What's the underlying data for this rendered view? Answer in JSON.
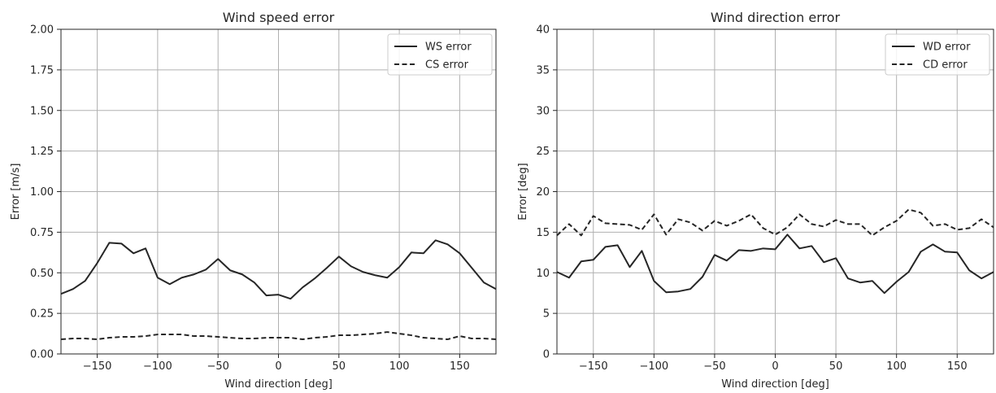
{
  "chart_data": [
    {
      "type": "line",
      "title": "Wind speed error",
      "xlabel": "Wind direction [deg]",
      "ylabel": "Error [m/s]",
      "xlim": [
        -180,
        180
      ],
      "ylim": [
        0,
        2.0
      ],
      "xticks": [
        -150,
        -100,
        -50,
        0,
        50,
        100,
        150
      ],
      "xtick_labels": [
        "−150",
        "−100",
        "−50",
        "0",
        "50",
        "100",
        "150"
      ],
      "yticks": [
        0,
        0.25,
        0.5,
        0.75,
        1.0,
        1.25,
        1.5,
        1.75,
        2.0
      ],
      "ytick_labels": [
        "0.00",
        "0.25",
        "0.50",
        "0.75",
        "1.00",
        "1.25",
        "1.50",
        "1.75",
        "2.00"
      ],
      "grid": true,
      "legend": "top-right",
      "x": [
        -180,
        -170,
        -160,
        -150,
        -140,
        -130,
        -120,
        -110,
        -100,
        -90,
        -80,
        -70,
        -60,
        -50,
        -40,
        -30,
        -20,
        -10,
        0,
        10,
        20,
        30,
        40,
        50,
        60,
        70,
        80,
        90,
        100,
        110,
        120,
        130,
        140,
        150,
        160,
        170,
        180
      ],
      "series": [
        {
          "name": "WS error",
          "style": "solid",
          "values": [
            0.37,
            0.4,
            0.45,
            0.56,
            0.685,
            0.68,
            0.62,
            0.65,
            0.47,
            0.43,
            0.47,
            0.49,
            0.52,
            0.585,
            0.515,
            0.49,
            0.44,
            0.36,
            0.365,
            0.34,
            0.41,
            0.465,
            0.53,
            0.6,
            0.54,
            0.505,
            0.485,
            0.47,
            0.535,
            0.625,
            0.62,
            0.7,
            0.675,
            0.62,
            0.53,
            0.44,
            0.4
          ]
        },
        {
          "name": "CS error",
          "style": "dashed",
          "values": [
            0.09,
            0.095,
            0.095,
            0.09,
            0.1,
            0.105,
            0.105,
            0.11,
            0.12,
            0.12,
            0.12,
            0.11,
            0.11,
            0.105,
            0.1,
            0.095,
            0.095,
            0.1,
            0.1,
            0.1,
            0.09,
            0.1,
            0.105,
            0.115,
            0.115,
            0.12,
            0.125,
            0.135,
            0.125,
            0.115,
            0.1,
            0.095,
            0.09,
            0.11,
            0.095,
            0.095,
            0.09
          ]
        }
      ]
    },
    {
      "type": "line",
      "title": "Wind direction error",
      "xlabel": "Wind direction [deg]",
      "ylabel": "Error [deg]",
      "xlim": [
        -180,
        180
      ],
      "ylim": [
        0,
        40
      ],
      "xticks": [
        -150,
        -100,
        -50,
        0,
        50,
        100,
        150
      ],
      "xtick_labels": [
        "−150",
        "−100",
        "−50",
        "0",
        "50",
        "100",
        "150"
      ],
      "yticks": [
        0,
        5,
        10,
        15,
        20,
        25,
        30,
        35,
        40
      ],
      "ytick_labels": [
        "0",
        "5",
        "10",
        "15",
        "20",
        "25",
        "30",
        "35",
        "40"
      ],
      "grid": true,
      "legend": "top-right",
      "x": [
        -180,
        -170,
        -160,
        -150,
        -140,
        -130,
        -120,
        -110,
        -100,
        -90,
        -80,
        -70,
        -60,
        -50,
        -40,
        -30,
        -20,
        -10,
        0,
        10,
        20,
        30,
        40,
        50,
        60,
        70,
        80,
        90,
        100,
        110,
        120,
        130,
        140,
        150,
        160,
        170,
        180
      ],
      "series": [
        {
          "name": "WD error",
          "style": "solid",
          "values": [
            10.1,
            9.4,
            11.4,
            11.6,
            13.2,
            13.4,
            10.7,
            12.7,
            9.0,
            7.6,
            7.7,
            8.0,
            9.5,
            12.2,
            11.5,
            12.8,
            12.7,
            13.0,
            12.9,
            14.7,
            13.0,
            13.3,
            11.3,
            11.8,
            9.3,
            8.8,
            9.0,
            7.5,
            8.9,
            10.1,
            12.6,
            13.5,
            12.6,
            12.5,
            10.3,
            9.3,
            10.1
          ]
        },
        {
          "name": "CD error",
          "style": "dashed",
          "values": [
            14.6,
            16.0,
            14.6,
            17.0,
            16.1,
            16.0,
            15.9,
            15.3,
            17.2,
            14.7,
            16.6,
            16.2,
            15.2,
            16.4,
            15.8,
            16.4,
            17.2,
            15.5,
            14.7,
            15.6,
            17.2,
            16.0,
            15.7,
            16.5,
            16.0,
            16.0,
            14.6,
            15.6,
            16.4,
            17.8,
            17.4,
            15.8,
            16.0,
            15.3,
            15.5,
            16.6,
            15.6
          ]
        }
      ]
    }
  ]
}
